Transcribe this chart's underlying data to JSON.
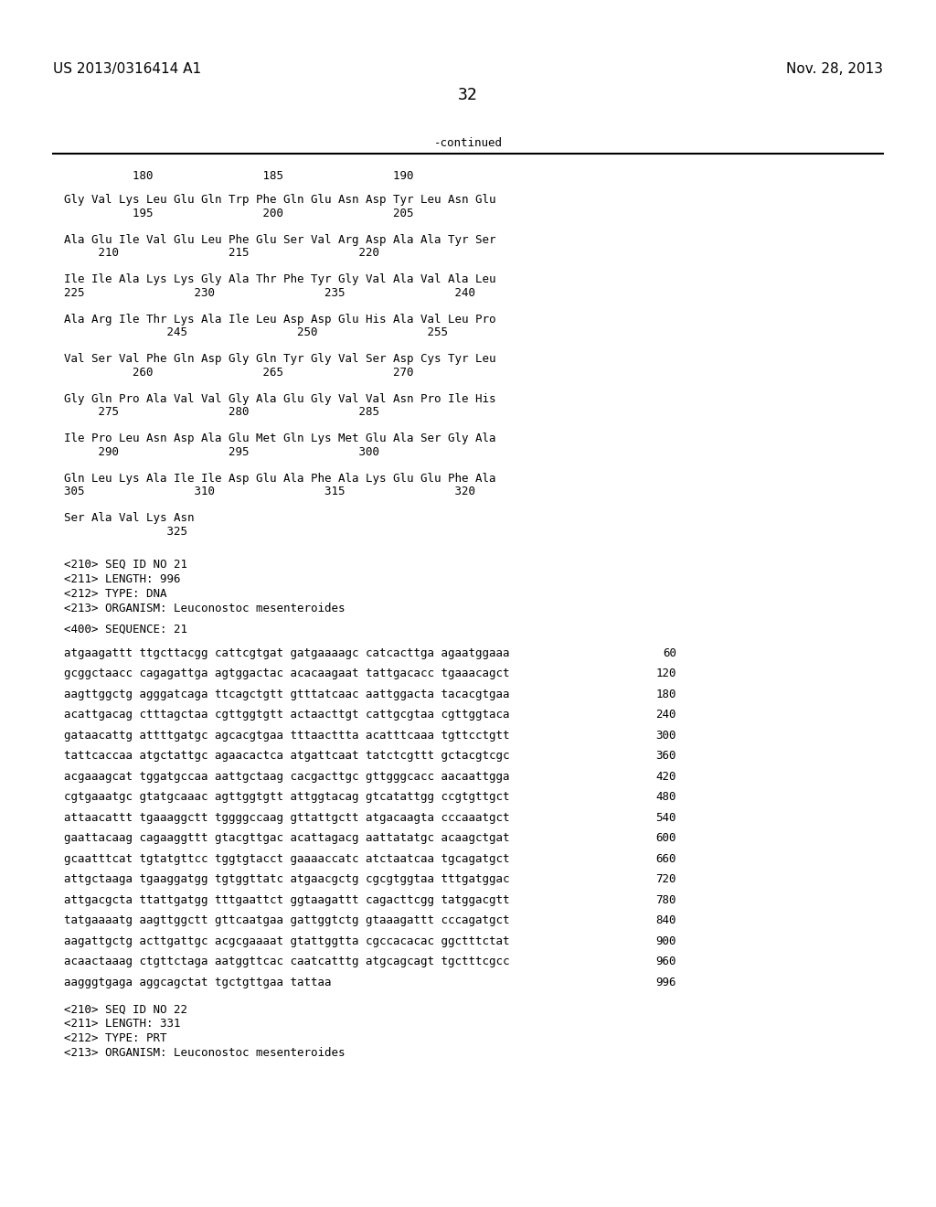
{
  "header_left": "US 2013/0316414 A1",
  "header_right": "Nov. 28, 2013",
  "page_number": "32",
  "continued_label": "-continued",
  "background_color": "#ffffff",
  "text_color": "#000000",
  "font_size_header": 11,
  "font_size_body": 9,
  "font_size_page": 13,
  "sequence_block": [
    {
      "type": "seq",
      "text": "Gly Val Lys Leu Glu Gln Trp Phe Gln Glu Asn Asp Tyr Leu Asn Glu"
    },
    {
      "type": "num",
      "text": "          195                200                205"
    },
    {
      "type": "seq",
      "text": "Ala Glu Ile Val Glu Leu Phe Glu Ser Val Arg Asp Ala Ala Tyr Ser"
    },
    {
      "type": "num",
      "text": "     210                215                220"
    },
    {
      "type": "seq",
      "text": "Ile Ile Ala Lys Lys Gly Ala Thr Phe Tyr Gly Val Ala Val Ala Leu"
    },
    {
      "type": "num",
      "text": "225                230                235                240"
    },
    {
      "type": "seq",
      "text": "Ala Arg Ile Thr Lys Ala Ile Leu Asp Asp Glu His Ala Val Leu Pro"
    },
    {
      "type": "num",
      "text": "               245                250                255"
    },
    {
      "type": "seq",
      "text": "Val Ser Val Phe Gln Asp Gly Gln Tyr Gly Val Ser Asp Cys Tyr Leu"
    },
    {
      "type": "num",
      "text": "          260                265                270"
    },
    {
      "type": "seq",
      "text": "Gly Gln Pro Ala Val Val Gly Ala Glu Gly Val Val Asn Pro Ile His"
    },
    {
      "type": "num",
      "text": "     275                280                285"
    },
    {
      "type": "seq",
      "text": "Ile Pro Leu Asn Asp Ala Glu Met Gln Lys Met Glu Ala Ser Gly Ala"
    },
    {
      "type": "num",
      "text": "     290                295                300"
    },
    {
      "type": "seq",
      "text": "Gln Leu Lys Ala Ile Ile Asp Glu Ala Phe Ala Lys Glu Glu Phe Ala"
    },
    {
      "type": "num",
      "text": "305                310                315                320"
    },
    {
      "type": "seq",
      "text": "Ser Ala Val Lys Asn"
    },
    {
      "type": "num",
      "text": "               325"
    }
  ],
  "ruler_text": "          180                185                190",
  "meta_block": [
    "<210> SEQ ID NO 21",
    "<211> LENGTH: 996",
    "<212> TYPE: DNA",
    "<213> ORGANISM: Leuconostoc mesenteroides"
  ],
  "seq400_label": "<400> SEQUENCE: 21",
  "dna_lines": [
    {
      "seq": "atgaagattt ttgcttacgg cattcgtgat gatgaaaagc catcacttga agaatggaaa",
      "num": "60"
    },
    {
      "seq": "gcggctaacc cagagattga agtggactac acacaagaat tattgacacc tgaaacagct",
      "num": "120"
    },
    {
      "seq": "aagttggctg agggatcaga ttcagctgtt gtttatcaac aattggacta tacacgtgaa",
      "num": "180"
    },
    {
      "seq": "acattgacag ctttagctaa cgttggtgtt actaacttgt cattgcgtaa cgttggtaca",
      "num": "240"
    },
    {
      "seq": "gataacattg attttgatgc agcacgtgaa tttaacttta acatttcaaa tgttcctgtt",
      "num": "300"
    },
    {
      "seq": "tattcaccaa atgctattgc agaacactca atgattcaat tatctcgttt gctacgtcgc",
      "num": "360"
    },
    {
      "seq": "acgaaagcat tggatgccaa aattgctaag cacgacttgc gttgggcacc aacaattgga",
      "num": "420"
    },
    {
      "seq": "cgtgaaatgc gtatgcaaac agttggtgtt attggtacag gtcatattgg ccgtgttgct",
      "num": "480"
    },
    {
      "seq": "attaacattt tgaaaggctt tggggccaag gttattgctt atgacaagta cccaaatgct",
      "num": "540"
    },
    {
      "seq": "gaattacaag cagaaggttt gtacgttgac acattagacg aattatatgc acaagctgat",
      "num": "600"
    },
    {
      "seq": "gcaatttcat tgtatgttcc tggtgtacct gaaaaccatc atctaatcaa tgcagatgct",
      "num": "660"
    },
    {
      "seq": "attgctaaga tgaaggatgg tgtggttatc atgaacgctg cgcgtggtaa tttgatggac",
      "num": "720"
    },
    {
      "seq": "attgacgcta ttattgatgg tttgaattct ggtaagattt cagacttcgg tatggacgtt",
      "num": "780"
    },
    {
      "seq": "tatgaaaatg aagttggctt gttcaatgaa gattggtctg gtaaagattt cccagatgct",
      "num": "840"
    },
    {
      "seq": "aagattgctg acttgattgc acgcgaaaat gtattggtta cgccacacac ggctttctat",
      "num": "900"
    },
    {
      "seq": "acaactaaag ctgttctaga aatggttcac caatcatttg atgcagcagt tgctttcgcc",
      "num": "960"
    },
    {
      "seq": "aagggtgaga aggcagctat tgctgttgaa tattaa",
      "num": "996"
    }
  ],
  "meta_block2": [
    "<210> SEQ ID NO 22",
    "<211> LENGTH: 331",
    "<212> TYPE: PRT",
    "<213> ORGANISM: Leuconostoc mesenteroides"
  ]
}
